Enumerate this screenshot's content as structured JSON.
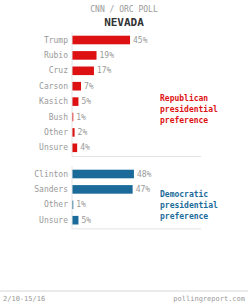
{
  "chart_data": [
    {
      "type": "bar",
      "orientation": "horizontal",
      "subtitle": "CNN / ORC POLL",
      "title": "NEVADA",
      "categories": [
        "Trump",
        "Rubio",
        "Cruz",
        "Carson",
        "Kasich",
        "Bush",
        "Other",
        "Unsure"
      ],
      "values": [
        45,
        19,
        17,
        7,
        5,
        1,
        2,
        4
      ],
      "value_labels": [
        "45%",
        "19%",
        "17%",
        "7%",
        "5%",
        "1%",
        "2%",
        "4%"
      ],
      "color": "#dd1111",
      "annotations": [
        "Republican\npresidential\npreference",
        "2/10-15/16",
        "pollingreport.com"
      ],
      "xlim": [
        0,
        100
      ],
      "data_labels": true,
      "tick_labels": false,
      "grid": false
    },
    {
      "type": "bar",
      "orientation": "horizontal",
      "categories": [
        "Clinton",
        "Sanders",
        "Other",
        "Unsure"
      ],
      "values": [
        48,
        47,
        1,
        5
      ],
      "value_labels": [
        "48%",
        "47%",
        "1%",
        "5%"
      ],
      "color": "#1a6b99",
      "annotations": [
        "Democratic\npresidential\npreference"
      ],
      "xlim": [
        0,
        100
      ],
      "data_labels": true,
      "tick_labels": false,
      "grid": false
    }
  ]
}
